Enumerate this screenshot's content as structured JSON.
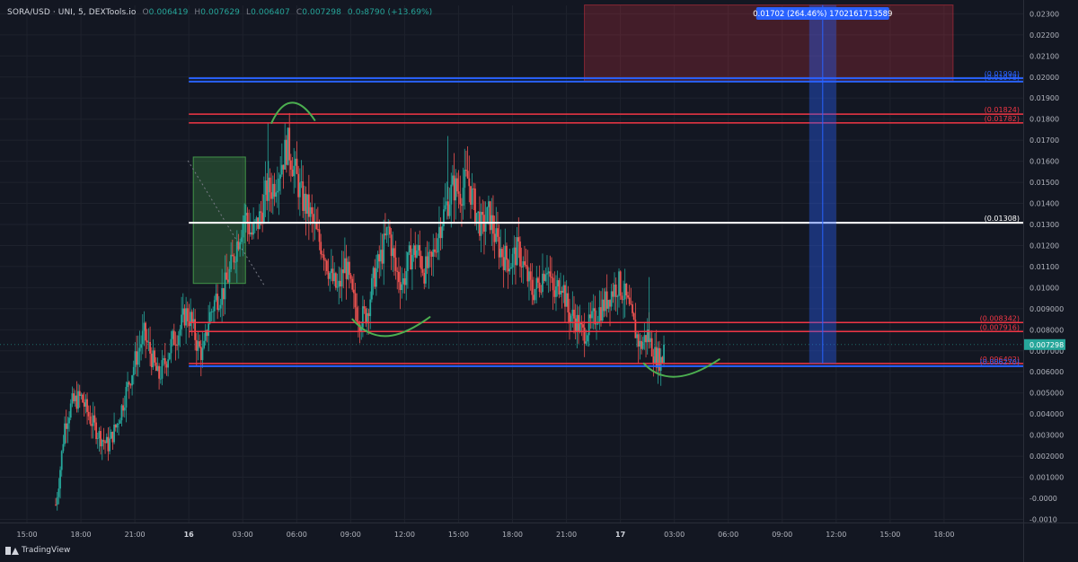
{
  "header": {
    "symbol": "SORA/USD · UNI, 5, DEXTools.io",
    "open_label": "O",
    "open": "0.006419",
    "high_label": "H",
    "high": "0.007629",
    "low_label": "L",
    "low": "0.006407",
    "close_label": "C",
    "close": "0.007298",
    "change": "0.0₃8790 (+13.69%)"
  },
  "branding": {
    "name": "TradingView"
  },
  "colors": {
    "background": "#131722",
    "grid": "#1e222d",
    "up": "#26a69a",
    "down": "#ef5350",
    "red_line": "#f23645",
    "blue_line": "#2962ff",
    "white_line": "#ffffff",
    "annotation_green": "#4caf50"
  },
  "chart_data": {
    "type": "candlestick",
    "y_ticks": [
      "0.02300",
      "0.02200",
      "0.02100",
      "0.02000",
      "0.01900",
      "0.01800",
      "0.01700",
      "0.01600",
      "0.01500",
      "0.01400",
      "0.01300",
      "0.01200",
      "0.01100",
      "0.01000",
      "0.009000",
      "0.008000",
      "0.007000",
      "0.006000",
      "0.005000",
      "0.004000",
      "0.003000",
      "0.002000",
      "0.001000",
      "-0.0000",
      "-0.0010"
    ],
    "y_tick_values": [
      0.023,
      0.022,
      0.021,
      0.02,
      0.019,
      0.018,
      0.017,
      0.016,
      0.015,
      0.014,
      0.013,
      0.012,
      0.011,
      0.01,
      0.009,
      0.008,
      0.007,
      0.006,
      0.005,
      0.004,
      0.003,
      0.002,
      0.001,
      0,
      -0.001
    ],
    "ylim": [
      -0.00115,
      0.0234
    ],
    "x_ticks": [
      {
        "label": "15:00",
        "t": 1.5,
        "bold": false
      },
      {
        "label": "18:00",
        "t": 4.5,
        "bold": false
      },
      {
        "label": "21:00",
        "t": 7.5,
        "bold": false
      },
      {
        "label": "16",
        "t": 10.5,
        "bold": true
      },
      {
        "label": "03:00",
        "t": 13.5,
        "bold": false
      },
      {
        "label": "06:00",
        "t": 16.5,
        "bold": false
      },
      {
        "label": "09:00",
        "t": 19.5,
        "bold": false
      },
      {
        "label": "12:00",
        "t": 22.5,
        "bold": false
      },
      {
        "label": "15:00",
        "t": 25.5,
        "bold": false
      },
      {
        "label": "18:00",
        "t": 28.5,
        "bold": false
      },
      {
        "label": "21:00",
        "t": 31.5,
        "bold": false
      },
      {
        "label": "17",
        "t": 34.5,
        "bold": true
      },
      {
        "label": "03:00",
        "t": 37.5,
        "bold": false
      },
      {
        "label": "06:00",
        "t": 40.5,
        "bold": false
      },
      {
        "label": "09:00",
        "t": 43.5,
        "bold": false
      },
      {
        "label": "12:00",
        "t": 46.5,
        "bold": false
      },
      {
        "label": "15:00",
        "t": 49.5,
        "bold": false
      },
      {
        "label": "18:00",
        "t": 52.5,
        "bold": false
      }
    ],
    "xlim": [
      0,
      56.9
    ],
    "price_path": [
      [
        3.1,
        -0.0003
      ],
      [
        3.3,
        0.001
      ],
      [
        3.6,
        0.0035
      ],
      [
        4.0,
        0.0045
      ],
      [
        4.5,
        0.0048
      ],
      [
        5.0,
        0.0038
      ],
      [
        5.5,
        0.003
      ],
      [
        6.0,
        0.0025
      ],
      [
        6.5,
        0.0035
      ],
      [
        7.0,
        0.005
      ],
      [
        7.5,
        0.0065
      ],
      [
        8.0,
        0.0078
      ],
      [
        8.4,
        0.0068
      ],
      [
        8.8,
        0.0057
      ],
      [
        9.2,
        0.0065
      ],
      [
        9.6,
        0.0075
      ],
      [
        10.0,
        0.008
      ],
      [
        10.3,
        0.0088
      ],
      [
        10.6,
        0.0085
      ],
      [
        11.0,
        0.0072
      ],
      [
        11.3,
        0.0068
      ],
      [
        11.6,
        0.0085
      ],
      [
        12.0,
        0.0095
      ],
      [
        12.4,
        0.0098
      ],
      [
        12.8,
        0.0108
      ],
      [
        13.2,
        0.0122
      ],
      [
        13.6,
        0.0135
      ],
      [
        14.0,
        0.0125
      ],
      [
        14.4,
        0.0132
      ],
      [
        14.8,
        0.0145
      ],
      [
        15.2,
        0.0148
      ],
      [
        15.6,
        0.0158
      ],
      [
        16.0,
        0.0168
      ],
      [
        16.4,
        0.0155
      ],
      [
        16.8,
        0.0142
      ],
      [
        17.2,
        0.0136
      ],
      [
        17.6,
        0.0125
      ],
      [
        18.0,
        0.0118
      ],
      [
        18.4,
        0.0105
      ],
      [
        18.8,
        0.0098
      ],
      [
        19.2,
        0.0112
      ],
      [
        19.6,
        0.0095
      ],
      [
        20.0,
        0.0085
      ],
      [
        20.4,
        0.0088
      ],
      [
        20.8,
        0.0105
      ],
      [
        21.2,
        0.0115
      ],
      [
        21.6,
        0.0128
      ],
      [
        22.0,
        0.0108
      ],
      [
        22.4,
        0.0102
      ],
      [
        22.8,
        0.0115
      ],
      [
        23.2,
        0.0118
      ],
      [
        23.6,
        0.0108
      ],
      [
        24.0,
        0.0112
      ],
      [
        24.4,
        0.0128
      ],
      [
        24.8,
        0.0138
      ],
      [
        25.2,
        0.0148
      ],
      [
        25.6,
        0.0145
      ],
      [
        26.0,
        0.0152
      ],
      [
        26.4,
        0.0138
      ],
      [
        26.8,
        0.0128
      ],
      [
        27.2,
        0.0135
      ],
      [
        27.6,
        0.0122
      ],
      [
        28.0,
        0.0115
      ],
      [
        28.4,
        0.0112
      ],
      [
        28.8,
        0.0118
      ],
      [
        29.2,
        0.0108
      ],
      [
        29.6,
        0.0098
      ],
      [
        30.0,
        0.0102
      ],
      [
        30.4,
        0.0112
      ],
      [
        30.8,
        0.0095
      ],
      [
        31.2,
        0.0105
      ],
      [
        31.6,
        0.0088
      ],
      [
        32.0,
        0.0085
      ],
      [
        32.4,
        0.0078
      ],
      [
        32.8,
        0.0082
      ],
      [
        33.2,
        0.0088
      ],
      [
        33.6,
        0.0092
      ],
      [
        34.0,
        0.0098
      ],
      [
        34.4,
        0.0102
      ],
      [
        34.8,
        0.0095
      ],
      [
        35.2,
        0.0083
      ],
      [
        35.6,
        0.0072
      ],
      [
        36.0,
        0.0078
      ],
      [
        36.4,
        0.0068
      ],
      [
        36.8,
        0.0065
      ],
      [
        37.0,
        0.0073
      ]
    ],
    "horizontal_levels": [
      {
        "label": "(0.01994)",
        "value": 0.01994,
        "color": "#2962ff",
        "width": 2,
        "show_label": true
      },
      {
        "label": "(0.01978)",
        "value": 0.01978,
        "color": "#2962ff",
        "width": 2,
        "show_label": true
      },
      {
        "label": "(0.01824)",
        "value": 0.01824,
        "color": "#f23645",
        "width": 1.5,
        "show_label": true
      },
      {
        "label": "(0.01782)",
        "value": 0.01782,
        "color": "#f23645",
        "width": 1.5,
        "show_label": true
      },
      {
        "label": "(0.01308)",
        "value": 0.01308,
        "color": "#ffffff",
        "width": 2,
        "show_label": true
      },
      {
        "label": "(0.008342)",
        "value": 0.008342,
        "color": "#f23645",
        "width": 1.5,
        "show_label": true
      },
      {
        "label": "(0.007916)",
        "value": 0.007916,
        "color": "#f23645",
        "width": 1.5,
        "show_label": true
      },
      {
        "label": "(0.006402)",
        "value": 0.006402,
        "color": "#f23645",
        "width": 1.5,
        "show_label": true
      },
      {
        "label": "(0.006270)",
        "value": 0.00627,
        "color": "#2962ff",
        "width": 2,
        "show_label": true
      }
    ],
    "current_price": {
      "label": "0.007298",
      "value": 0.007298,
      "color": "#26a69a"
    },
    "measure_tool": {
      "label": "0.01702 (264.46%) 1702161713589",
      "t_start": 45.0,
      "t_end": 46.5,
      "y_low": 0.0064,
      "y_high": 0.02342
    },
    "target_zone": {
      "t_start": 32.5,
      "t_end": 53.0,
      "y_low": 0.0198,
      "y_high": 0.02342
    },
    "consolidation_box": {
      "t_start": 10.75,
      "t_end": 13.65,
      "y_low": 0.0102,
      "y_high": 0.0162
    },
    "annotations": [
      {
        "type": "arch",
        "points": [
          [
            15.1,
            0.01782
          ],
          [
            16.0,
            0.0195
          ],
          [
            17.0,
            0.0186
          ],
          [
            17.5,
            0.01795
          ]
        ]
      },
      {
        "type": "bowl",
        "points": [
          [
            19.6,
            0.0085
          ],
          [
            21.0,
            0.0071
          ],
          [
            22.6,
            0.0078
          ],
          [
            23.9,
            0.0086
          ]
        ]
      },
      {
        "type": "bowl",
        "points": [
          [
            35.8,
            0.0064
          ],
          [
            37.0,
            0.0053
          ],
          [
            38.6,
            0.0058
          ],
          [
            40.0,
            0.0066
          ]
        ]
      }
    ]
  }
}
